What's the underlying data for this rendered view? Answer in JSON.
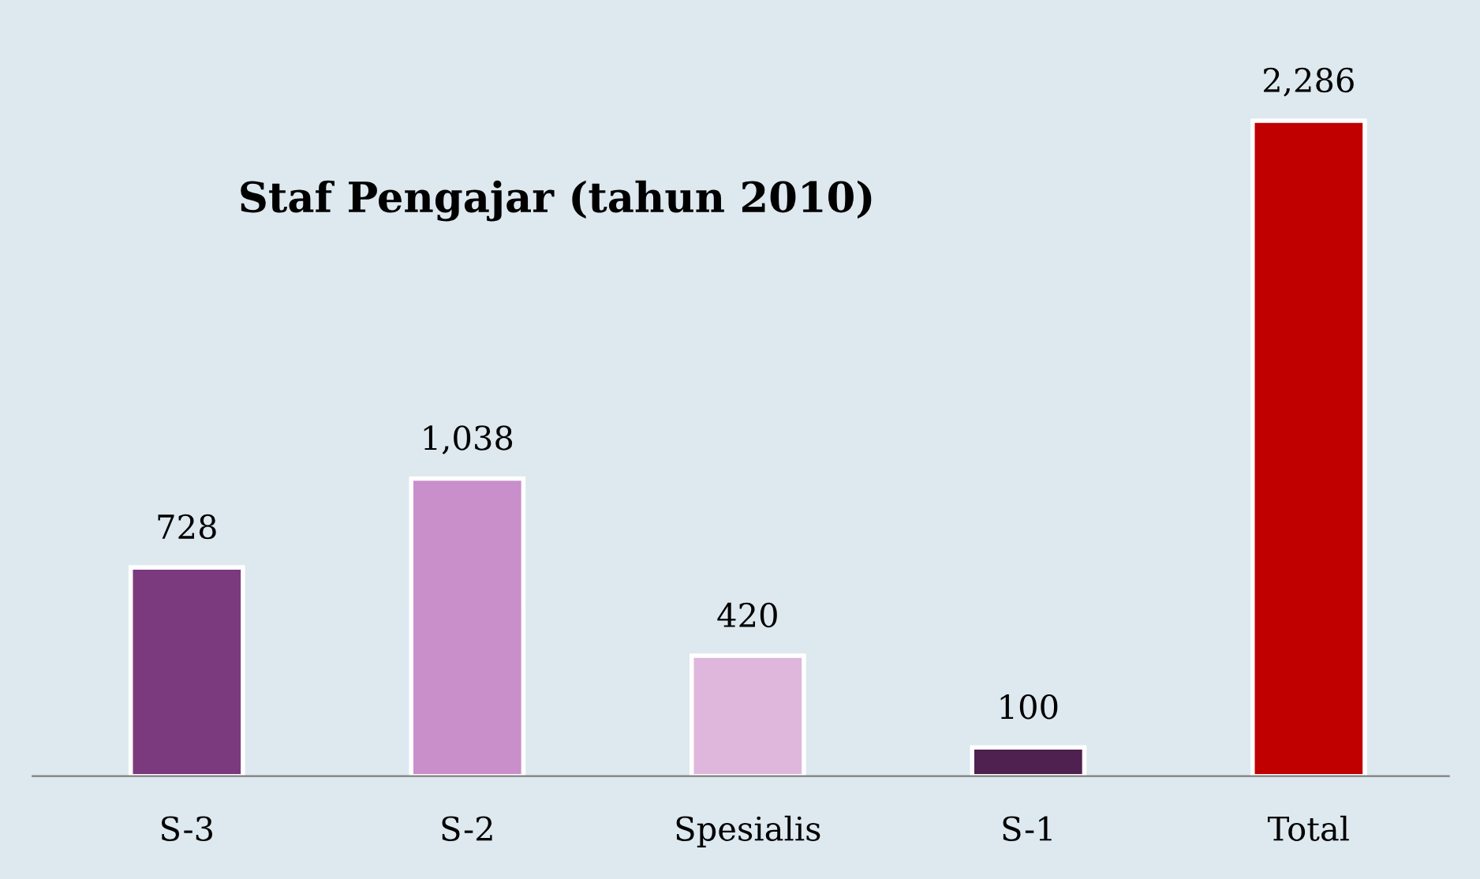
{
  "chart_data": {
    "type": "bar",
    "title": "Staf Pengajar (tahun 2010)",
    "categories": [
      "S-3",
      "S-2",
      "Spesialis",
      "S-1",
      "Total"
    ],
    "values": [
      728,
      1038,
      420,
      100,
      2286
    ],
    "colors": [
      "#7b3a7d",
      "#c98fca",
      "#dfb6dc",
      "#4f2150",
      "#c00000"
    ],
    "value_labels": [
      "728",
      "1,038",
      "420",
      "100",
      "2,286"
    ],
    "grid": false,
    "legend": false
  }
}
